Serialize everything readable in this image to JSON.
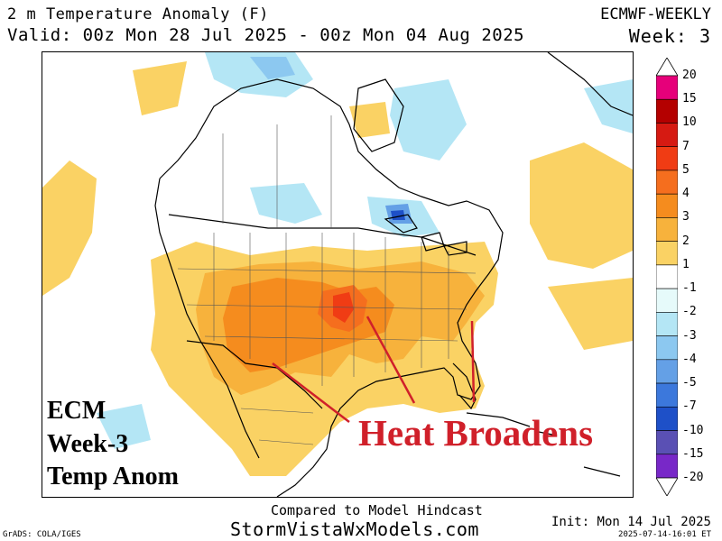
{
  "header": {
    "title": "2 m Temperature Anomaly (F)",
    "valid": "Valid: 00z Mon 28 Jul 2025 - 00z Mon 04 Aug 2025",
    "model": "ECMWF-WEEKLY",
    "week": "Week: 3"
  },
  "overlay": {
    "line1": "ECM",
    "line2": "Week-3",
    "line3": "Temp Anom"
  },
  "annotation": {
    "text": "Heat Broadens",
    "color": "#d0202a"
  },
  "colorbar": {
    "levels": [
      {
        "label": "20",
        "color": "#e6007a"
      },
      {
        "label": "15",
        "color": "#b40000"
      },
      {
        "label": "10",
        "color": "#d61a12"
      },
      {
        "label": "7",
        "color": "#f03c14"
      },
      {
        "label": "5",
        "color": "#f56e1e"
      },
      {
        "label": "4",
        "color": "#f58c1e"
      },
      {
        "label": "3",
        "color": "#f7b23c"
      },
      {
        "label": "2",
        "color": "#fad264"
      },
      {
        "label": "1",
        "color": "#ffffff"
      },
      {
        "label": "-1",
        "color": "#e6fafa"
      },
      {
        "label": "-2",
        "color": "#b4e6f5"
      },
      {
        "label": "-3",
        "color": "#8cc8f0"
      },
      {
        "label": "-4",
        "color": "#64a0e6"
      },
      {
        "label": "-5",
        "color": "#3c78dc"
      },
      {
        "label": "-7",
        "color": "#1e50c8"
      },
      {
        "label": "-10",
        "color": "#5a50b4"
      },
      {
        "label": "-15",
        "color": "#7828c8"
      },
      {
        "label": "-20",
        "color": "#a000dc"
      }
    ],
    "top_cap_color": "#ffffff",
    "bottom_cap_color": "#ffffff"
  },
  "footer": {
    "compared": "Compared to Model Hindcast",
    "site": "StormVistaWxModels.com",
    "credit": "GrADS: COLA/IGES",
    "init": "Init: Mon 14 Jul 2025",
    "timestamp": "2025-07-14-16:01 ET"
  }
}
